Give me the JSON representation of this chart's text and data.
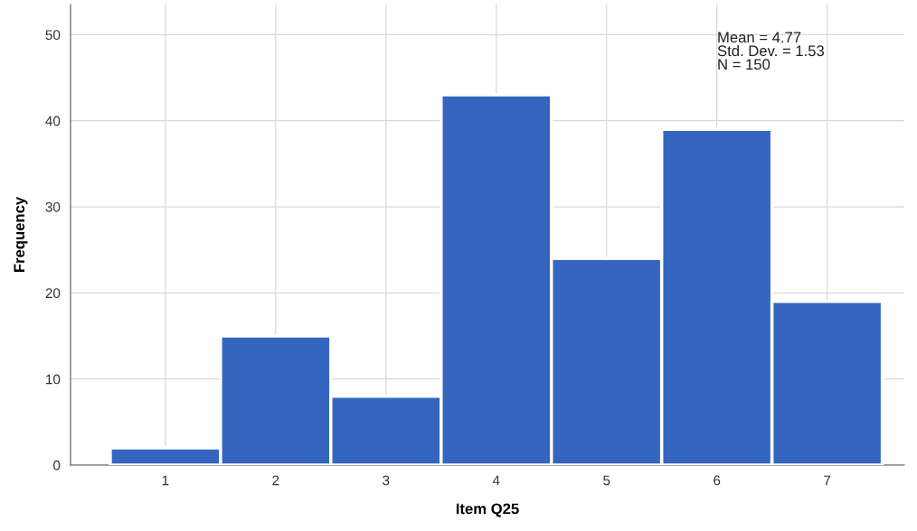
{
  "chart_data": {
    "type": "histogram",
    "xlabel": "Item Q25",
    "ylabel": "Frequency",
    "bins": [
      0.5,
      1.5,
      2.5,
      3.5,
      4.5,
      5.5,
      6.5,
      7.5
    ],
    "values": [
      2,
      15,
      8,
      43,
      24,
      39,
      19
    ],
    "color": "#3566bf",
    "xlim": [
      0.14,
      7.7
    ],
    "xticks": [
      1,
      2,
      3,
      4,
      5,
      6,
      7
    ],
    "ylim": [
      0,
      53.5
    ],
    "yticks": [
      0,
      10,
      20,
      30,
      40,
      50
    ],
    "grid": true,
    "annotations": [
      "Mean = 4.77",
      "Std. Dev. = 1.53",
      "N = 150"
    ]
  }
}
